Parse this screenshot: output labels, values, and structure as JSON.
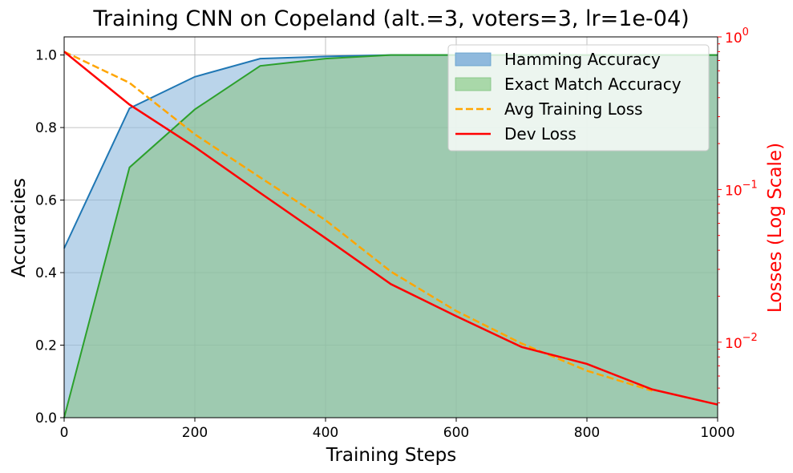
{
  "chart_data": {
    "type": "line",
    "title": "Training CNN on Copeland (alt.=3, voters=3, lr=1e-04)",
    "xlabel": "Training Steps",
    "ylabel": "Accuracies",
    "y2label": "Losses (Log Scale)",
    "xlim": [
      0,
      1000
    ],
    "ylim": [
      0,
      1.05
    ],
    "y2scale": "log",
    "y2lim": [
      0.0032,
      1
    ],
    "grid": true,
    "legend_position": "top-right",
    "x": [
      0,
      100,
      200,
      300,
      400,
      500,
      600,
      700,
      800,
      900,
      1000
    ],
    "xticks": [
      "0",
      "200",
      "400",
      "600",
      "800",
      "1000"
    ],
    "yticks": [
      "0.0",
      "0.2",
      "0.4",
      "0.6",
      "0.8",
      "1.0"
    ],
    "y2ticks": [
      {
        "value": 1,
        "label": "10",
        "exp": "0"
      },
      {
        "value": 0.1,
        "label": "10",
        "exp": "−1"
      },
      {
        "value": 0.01,
        "label": "10",
        "exp": "−2"
      }
    ],
    "series": [
      {
        "name": "Hamming Accuracy",
        "kind": "area",
        "axis": "left",
        "line_color": "#1f77b4",
        "fill_color": "#8fb9dd",
        "values": [
          0.467,
          0.853,
          0.94,
          0.99,
          0.996,
          1.0,
          1.0,
          1.0,
          1.0,
          1.0,
          1.0
        ]
      },
      {
        "name": "Exact Match Accuracy",
        "kind": "area",
        "axis": "left",
        "line_color": "#2ca02c",
        "fill_color": "#8dc38d",
        "values": [
          0.0,
          0.69,
          0.85,
          0.97,
          0.99,
          1.0,
          1.0,
          1.0,
          1.0,
          1.0,
          1.0
        ]
      },
      {
        "name": "Avg Training Loss",
        "kind": "line",
        "axis": "right",
        "line_color": "#ffa500",
        "dashed": true,
        "values": [
          0.8,
          0.5,
          0.23,
          0.12,
          0.063,
          0.029,
          0.016,
          0.0098,
          0.0065,
          0.0048,
          null
        ]
      },
      {
        "name": "Dev Loss",
        "kind": "line",
        "axis": "right",
        "line_color": "#ff0000",
        "dashed": false,
        "values": [
          0.8,
          0.36,
          0.19,
          0.095,
          0.048,
          0.024,
          0.0148,
          0.0093,
          0.0072,
          0.0049,
          0.0039
        ]
      }
    ]
  }
}
